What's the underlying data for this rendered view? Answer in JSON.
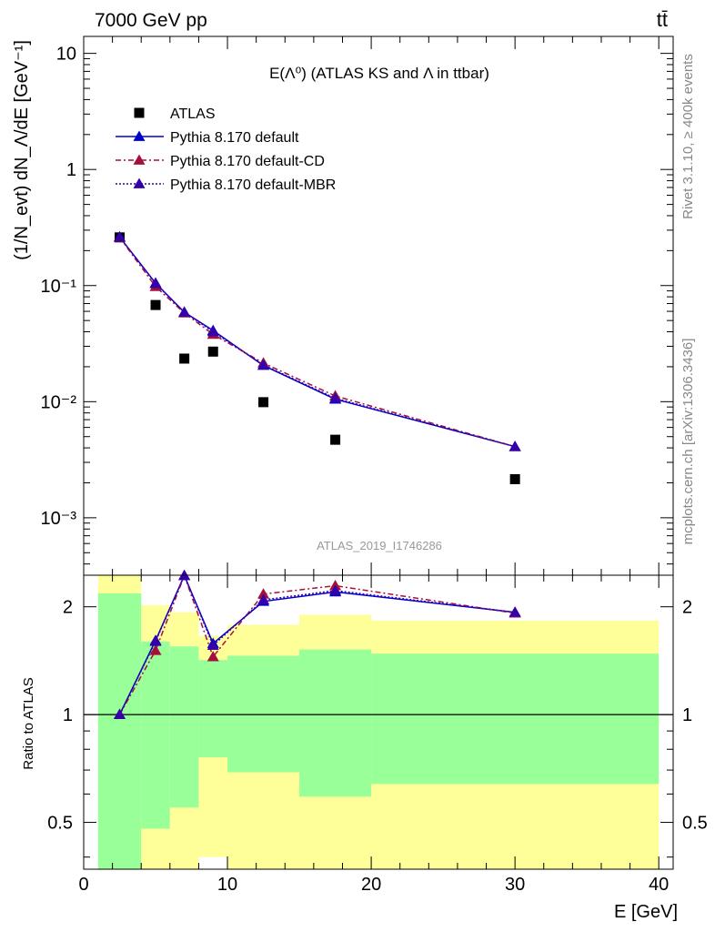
{
  "header": {
    "left": "7000 GeV pp",
    "right": "tt̄"
  },
  "side_labels": {
    "rivet": "Rivet 3.1.10, ≥ 400k events",
    "mcplots": "mcplots.cern.ch [arXiv:1306.3436]"
  },
  "chart_data": [
    {
      "type": "scatter",
      "title": "E(Λ⁰) (ATLAS KS and Λ in ttbar)",
      "watermark": "ATLAS_2019_I1746286",
      "ylabel": "(1/N_evt) dN_Λ/dE [GeV⁻¹]",
      "yscale": "log",
      "ylim": [
        0.00032,
        14
      ],
      "ytick_labels": [
        "10⁻³",
        "10⁻²",
        "10⁻¹",
        "1",
        "10"
      ],
      "xlim": [
        0,
        41
      ],
      "legend_position": "top-left",
      "series": [
        {
          "name": "ATLAS",
          "style": "square-marker",
          "color": "#000000",
          "x": [
            2.5,
            5,
            7,
            9,
            12.5,
            17.5,
            30
          ],
          "y": [
            0.26,
            0.068,
            0.0235,
            0.027,
            0.0099,
            0.0047,
            0.00215
          ]
        },
        {
          "name": "Pythia 8.170 default",
          "style": "solid",
          "color": "#0000cc",
          "x": [
            2.5,
            5,
            7,
            9,
            12.5,
            17.5,
            30
          ],
          "y": [
            0.262,
            0.105,
            0.059,
            0.041,
            0.0205,
            0.0105,
            0.0041
          ]
        },
        {
          "name": "Pythia 8.170 default-CD",
          "style": "dash-dot",
          "color": "#a50f3c",
          "x": [
            2.5,
            5,
            7,
            9,
            12.5,
            17.5,
            30
          ],
          "y": [
            0.26,
            0.098,
            0.058,
            0.038,
            0.0215,
            0.0112,
            0.0041
          ]
        },
        {
          "name": "Pythia 8.170 default-MBR",
          "style": "dotted",
          "color": "#3300aa",
          "x": [
            2.5,
            5,
            7,
            9,
            12.5,
            17.5,
            30
          ],
          "y": [
            0.262,
            0.104,
            0.059,
            0.04,
            0.0207,
            0.0107,
            0.0041
          ]
        }
      ]
    },
    {
      "type": "line",
      "ylabel": "Ratio to ATLAS",
      "xlabel": "E [GeV]",
      "yscale": "log",
      "ylim": [
        0.37,
        2.45
      ],
      "ytick_labels": [
        "0.5",
        "1",
        "2"
      ],
      "xlim": [
        0,
        41
      ],
      "xtick_labels": [
        "0",
        "10",
        "20",
        "30",
        "40"
      ],
      "reference_line": 1,
      "uncertainty_bands": {
        "bins": [
          [
            1,
            4
          ],
          [
            4,
            6
          ],
          [
            6,
            8
          ],
          [
            8,
            10
          ],
          [
            10,
            15
          ],
          [
            15,
            20
          ],
          [
            20,
            40
          ]
        ],
        "inner": {
          "color": "#99ff99",
          "lo": [
            0.37,
            0.48,
            0.55,
            0.76,
            0.69,
            0.59,
            0.64
          ],
          "hi": [
            2.18,
            1.6,
            1.55,
            1.42,
            1.46,
            1.52,
            1.48
          ]
        },
        "outer": {
          "color": "#ffff99",
          "lo": [
            0.37,
            0.37,
            0.37,
            0.4,
            0.37,
            0.37,
            0.37
          ],
          "hi": [
            2.45,
            2.02,
            1.93,
            1.66,
            1.78,
            1.9,
            1.83
          ]
        }
      },
      "series": [
        {
          "name": "Pythia 8.170 default",
          "x": [
            2.5,
            5,
            7,
            9,
            12.5,
            17.5,
            30
          ],
          "y": [
            1.0,
            1.61,
            2.48,
            1.58,
            2.07,
            2.2,
            1.93
          ]
        },
        {
          "name": "Pythia 8.170 default-CD",
          "x": [
            2.5,
            5,
            7,
            9,
            12.5,
            17.5,
            30
          ],
          "y": [
            1.0,
            1.51,
            2.47,
            1.45,
            2.17,
            2.29,
            1.92
          ]
        },
        {
          "name": "Pythia 8.170 default-MBR",
          "x": [
            2.5,
            5,
            7,
            9,
            12.5,
            17.5,
            30
          ],
          "y": [
            1.0,
            1.6,
            2.48,
            1.56,
            2.09,
            2.22,
            1.93
          ]
        }
      ]
    }
  ]
}
